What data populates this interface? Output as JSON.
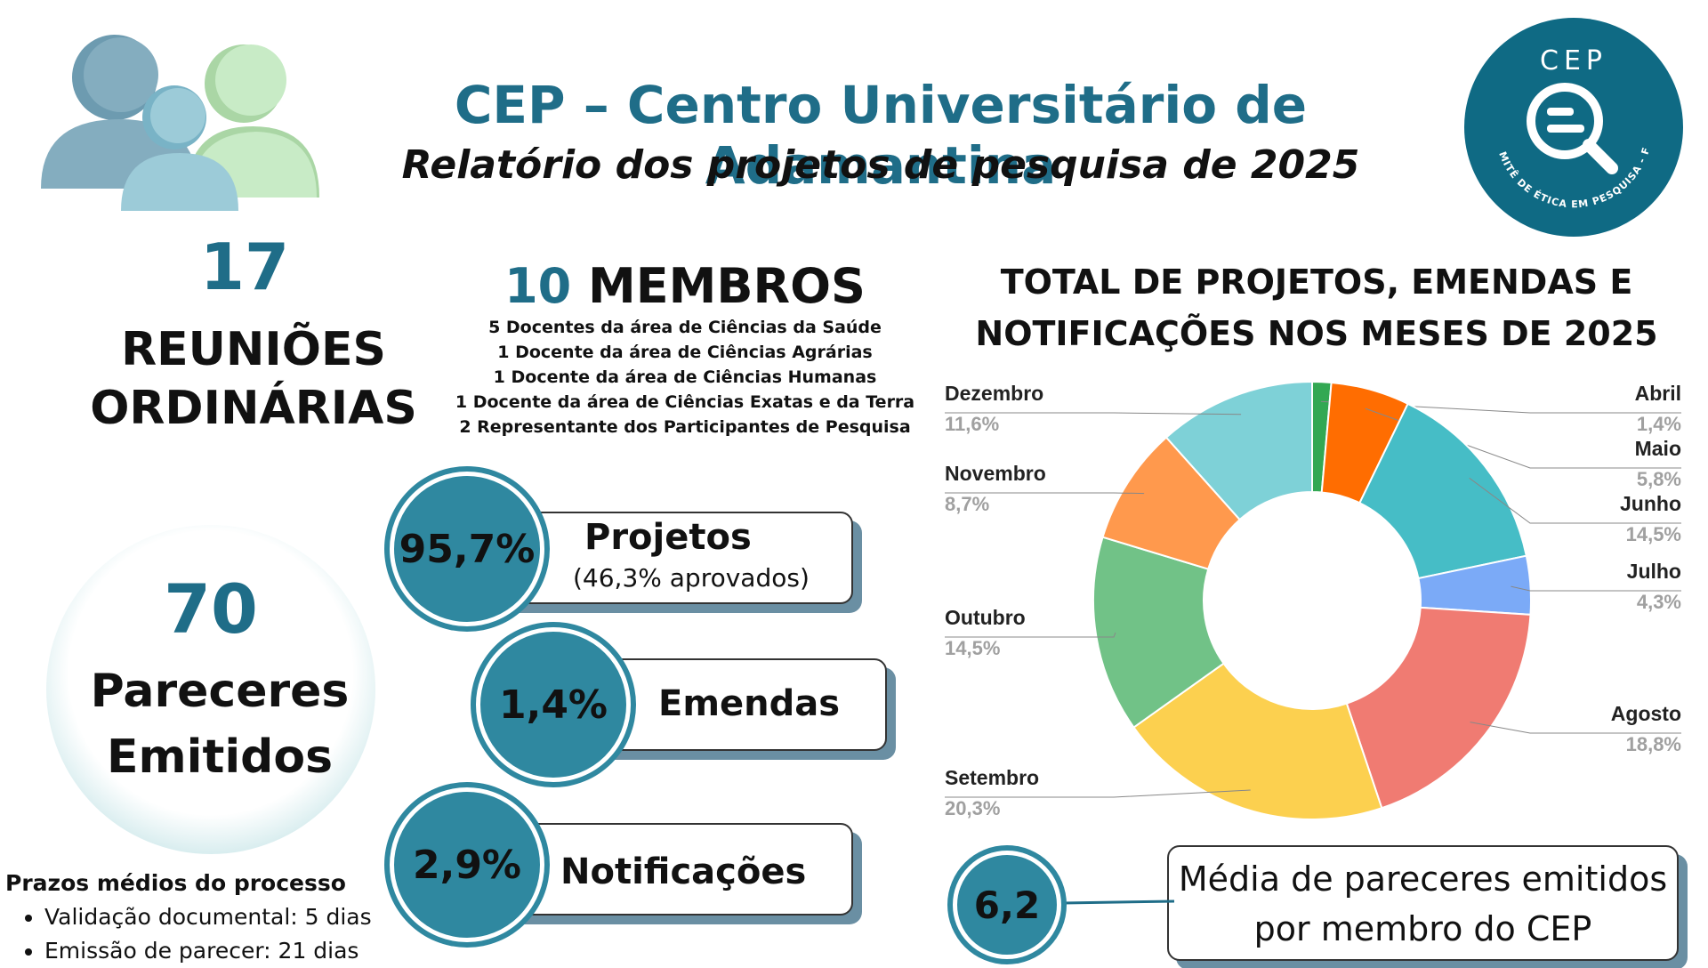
{
  "header": {
    "title": "CEP – Centro Universitário de Adamantina",
    "subtitle": "Relatório dos projetos de pesquisa de 2025"
  },
  "logo": {
    "text": "CEP",
    "ring_text": "COMITÊ DE ÉTICA EM PESQUISA - FAI",
    "color": "#0f6a84"
  },
  "reunioes": {
    "count": "17",
    "label_line1": "REUNIÕES",
    "label_line2": "ORDINÁRIAS"
  },
  "membros": {
    "count": "10",
    "label": "MEMBROS",
    "items": [
      "5 Docentes da área de Ciências da Saúde",
      "1 Docente da área de Ciências Agrárias",
      "1 Docente da área de Ciências Humanas",
      "1 Docente da área de Ciências Exatas e da Terra",
      "2 Representante dos Participantes de Pesquisa"
    ]
  },
  "pareceres": {
    "count": "70",
    "label_line1": "Pareceres",
    "label_line2": "Emitidos"
  },
  "categorias": [
    {
      "pct": "95,7%",
      "label": "Projetos",
      "sub": "(46,3% aprovados)"
    },
    {
      "pct": "1,4%",
      "label": "Emendas"
    },
    {
      "pct": "2,9%",
      "label": "Notificações"
    }
  ],
  "prazos": {
    "title": "Prazos médios do processo",
    "items": [
      "Validação documental: 5 dias",
      "Emissão de parecer: 21 dias"
    ]
  },
  "media": {
    "value": "6,2",
    "line1": "Média de pareceres emitidos",
    "line2": "por membro do CEP"
  },
  "chart_data": {
    "type": "pie",
    "donut": true,
    "title_line1": "TOTAL DE PROJETOS, EMENDAS E",
    "title_line2": "NOTIFICAÇÕES NOS MESES DE 2025",
    "categories": [
      "Abril",
      "Maio",
      "Junho",
      "Julho",
      "Agosto",
      "Setembro",
      "Outubro",
      "Novembro",
      "Dezembro"
    ],
    "values": [
      1.4,
      5.8,
      14.5,
      4.3,
      18.8,
      20.3,
      14.5,
      8.7,
      11.6
    ],
    "value_labels": [
      "1,4%",
      "5,8%",
      "14,5%",
      "4,3%",
      "18,8%",
      "20,3%",
      "14,5%",
      "8,7%",
      "11,6%"
    ],
    "colors": [
      "#33a853",
      "#ff6d01",
      "#46bdc6",
      "#7baaf7",
      "#f07b72",
      "#fcd04f",
      "#71c287",
      "#ff994d",
      "#7ed1d7"
    ]
  }
}
